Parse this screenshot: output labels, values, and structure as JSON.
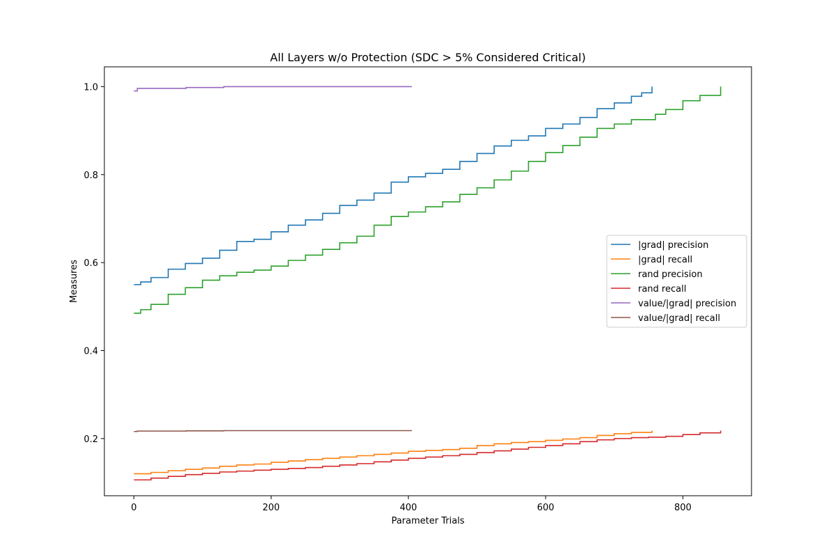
{
  "chart_data": {
    "type": "line",
    "title": "All Layers w/o Protection (SDC > 5% Considered Critical)",
    "xlabel": "Parameter Trials",
    "ylabel": "Measures",
    "xlim": [
      -43,
      900
    ],
    "ylim": [
      0.07,
      1.045
    ],
    "xticks": [
      0,
      200,
      400,
      600,
      800
    ],
    "yticks": [
      0.2,
      0.4,
      0.6,
      0.8,
      1.0
    ],
    "xtick_labels": [
      "0",
      "200",
      "400",
      "600",
      "800"
    ],
    "ytick_labels": [
      "0.2",
      "0.4",
      "0.6",
      "0.8",
      "1.0"
    ],
    "grid": false,
    "legend_position": "center-right",
    "series": [
      {
        "name": "|grad| precision",
        "color": "#1f77b4",
        "x": [
          0,
          10,
          25,
          50,
          75,
          100,
          125,
          150,
          175,
          200,
          225,
          250,
          275,
          300,
          325,
          350,
          375,
          400,
          425,
          450,
          475,
          500,
          525,
          550,
          575,
          600,
          625,
          650,
          675,
          700,
          725,
          740,
          755
        ],
        "y": [
          0.55,
          0.556,
          0.566,
          0.585,
          0.598,
          0.61,
          0.628,
          0.648,
          0.653,
          0.67,
          0.685,
          0.697,
          0.712,
          0.73,
          0.742,
          0.758,
          0.783,
          0.795,
          0.803,
          0.812,
          0.83,
          0.848,
          0.865,
          0.878,
          0.888,
          0.905,
          0.915,
          0.93,
          0.95,
          0.963,
          0.978,
          0.986,
          1.0
        ]
      },
      {
        "name": "|grad| recall",
        "color": "#ff7f0e",
        "x": [
          0,
          25,
          50,
          75,
          100,
          125,
          150,
          175,
          200,
          225,
          250,
          275,
          300,
          325,
          350,
          375,
          400,
          425,
          450,
          475,
          500,
          525,
          550,
          575,
          600,
          625,
          650,
          675,
          700,
          725,
          755
        ],
        "y": [
          0.12,
          0.123,
          0.127,
          0.13,
          0.133,
          0.137,
          0.14,
          0.142,
          0.146,
          0.149,
          0.152,
          0.155,
          0.158,
          0.161,
          0.164,
          0.167,
          0.171,
          0.173,
          0.175,
          0.178,
          0.184,
          0.188,
          0.191,
          0.193,
          0.196,
          0.199,
          0.202,
          0.207,
          0.211,
          0.214,
          0.218
        ]
      },
      {
        "name": "rand precision",
        "color": "#2ca02c",
        "x": [
          0,
          10,
          25,
          50,
          75,
          100,
          125,
          150,
          175,
          200,
          225,
          250,
          275,
          300,
          325,
          350,
          375,
          400,
          425,
          450,
          475,
          500,
          525,
          550,
          575,
          600,
          625,
          650,
          675,
          700,
          725,
          760,
          775,
          800,
          825,
          855
        ],
        "y": [
          0.485,
          0.493,
          0.505,
          0.528,
          0.543,
          0.56,
          0.57,
          0.578,
          0.583,
          0.592,
          0.605,
          0.617,
          0.63,
          0.645,
          0.66,
          0.685,
          0.705,
          0.715,
          0.727,
          0.738,
          0.755,
          0.77,
          0.788,
          0.808,
          0.83,
          0.85,
          0.866,
          0.885,
          0.905,
          0.915,
          0.925,
          0.937,
          0.948,
          0.968,
          0.98,
          1.0
        ]
      },
      {
        "name": "rand recall",
        "color": "#d62728",
        "x": [
          0,
          25,
          50,
          75,
          100,
          125,
          150,
          175,
          200,
          225,
          250,
          275,
          300,
          325,
          350,
          375,
          400,
          425,
          450,
          475,
          500,
          525,
          550,
          575,
          600,
          625,
          650,
          675,
          700,
          725,
          750,
          775,
          800,
          825,
          855
        ],
        "y": [
          0.106,
          0.11,
          0.114,
          0.118,
          0.121,
          0.124,
          0.126,
          0.128,
          0.13,
          0.132,
          0.134,
          0.137,
          0.14,
          0.143,
          0.147,
          0.151,
          0.155,
          0.158,
          0.161,
          0.164,
          0.168,
          0.172,
          0.176,
          0.18,
          0.184,
          0.188,
          0.193,
          0.197,
          0.2,
          0.202,
          0.203,
          0.205,
          0.209,
          0.213,
          0.218
        ]
      },
      {
        "name": "value/|grad| precision",
        "color": "#9467bd",
        "x": [
          0,
          5,
          75,
          76,
          130,
          131,
          405
        ],
        "y": [
          0.99,
          0.996,
          0.996,
          0.998,
          0.998,
          1.0,
          1.0
        ]
      },
      {
        "name": "value/|grad| recall",
        "color": "#8c564b",
        "x": [
          0,
          5,
          75,
          76,
          130,
          131,
          405
        ],
        "y": [
          0.216,
          0.217,
          0.217,
          0.2175,
          0.2175,
          0.218,
          0.218
        ]
      }
    ]
  }
}
